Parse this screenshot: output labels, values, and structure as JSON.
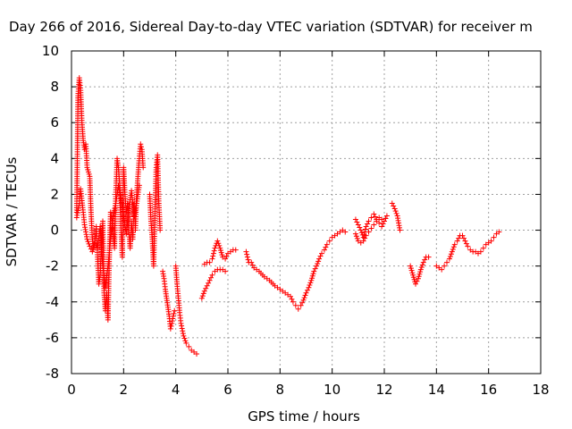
{
  "chart_data": {
    "type": "scatter",
    "title": "Day 266 of 2016, Sidereal Day-to-day VTEC variation (SDTVAR) for receiver m",
    "xlabel": "GPS time / hours",
    "ylabel": "SDTVAR / TECUs",
    "xlim": [
      0,
      18
    ],
    "ylim": [
      -8,
      10
    ],
    "xticks": [
      "0",
      "2",
      "4",
      "6",
      "8",
      "10",
      "12",
      "14",
      "16",
      "18"
    ],
    "yticks": [
      "-8",
      "-6",
      "-4",
      "-2",
      "0",
      "2",
      "4",
      "6",
      "8",
      "10"
    ],
    "grid": true,
    "marker": "+",
    "color": "#ff0000",
    "series": [
      {
        "name": "SDTVAR",
        "segments": [
          [
            [
              0.2,
              1.0
            ],
            [
              0.25,
              7.5
            ],
            [
              0.3,
              8.5
            ],
            [
              0.35,
              7.8
            ],
            [
              0.4,
              6.0
            ],
            [
              0.45,
              5.0
            ],
            [
              0.5,
              4.5
            ],
            [
              0.55,
              4.8
            ],
            [
              0.6,
              3.5
            ],
            [
              0.7,
              3.0
            ],
            [
              0.75,
              1.0
            ],
            [
              0.8,
              -0.5
            ],
            [
              0.85,
              -1.0
            ],
            [
              0.9,
              -0.6
            ],
            [
              0.95,
              0.2
            ],
            [
              1.0,
              -1.5
            ],
            [
              1.05,
              -3.0
            ],
            [
              1.1,
              -2.5
            ],
            [
              1.15,
              -0.8
            ],
            [
              1.2,
              0.5
            ],
            [
              1.25,
              -3.5
            ],
            [
              1.3,
              -4.5
            ],
            [
              1.35,
              -3.5
            ],
            [
              1.4,
              -5.0
            ],
            [
              1.45,
              -1.5
            ],
            [
              1.5,
              1.0
            ],
            [
              1.55,
              0.5
            ],
            [
              1.6,
              -0.2
            ],
            [
              1.65,
              -1.0
            ],
            [
              1.7,
              2.0
            ],
            [
              1.75,
              4.0
            ],
            [
              1.8,
              3.5
            ],
            [
              1.85,
              2.5
            ],
            [
              1.9,
              0.0
            ],
            [
              1.95,
              -1.5
            ],
            [
              2.0,
              3.5
            ],
            [
              2.05,
              2.0
            ],
            [
              2.1,
              1.0
            ],
            [
              2.15,
              1.5
            ],
            [
              2.2,
              0.0
            ],
            [
              2.25,
              -1.0
            ],
            [
              2.3,
              0.5
            ],
            [
              2.35,
              -0.5
            ],
            [
              2.4,
              1.5
            ],
            [
              2.45,
              0.0
            ],
            [
              2.5,
              2.0
            ],
            [
              2.55,
              3.0
            ],
            [
              2.6,
              4.0
            ],
            [
              2.65,
              4.8
            ],
            [
              2.7,
              4.5
            ],
            [
              2.75,
              3.5
            ]
          ],
          [
            [
              0.2,
              0.7
            ],
            [
              0.3,
              1.5
            ],
            [
              0.35,
              2.3
            ],
            [
              0.45,
              1.0
            ],
            [
              0.5,
              0.3
            ],
            [
              0.6,
              -0.5
            ],
            [
              0.7,
              -0.9
            ],
            [
              0.8,
              -1.2
            ],
            [
              0.9,
              -0.7
            ],
            [
              1.0,
              -1.0
            ],
            [
              1.1,
              0.2
            ],
            [
              1.2,
              -2.0
            ],
            [
              1.3,
              -3.2
            ],
            [
              1.4,
              -2.0
            ],
            [
              1.5,
              -0.5
            ],
            [
              1.6,
              0.8
            ],
            [
              1.7,
              1.5
            ],
            [
              1.8,
              2.5
            ],
            [
              1.9,
              1.8
            ],
            [
              2.0,
              0.8
            ],
            [
              2.1,
              -0.2
            ],
            [
              2.2,
              1.2
            ],
            [
              2.3,
              2.2
            ],
            [
              2.4,
              0.8
            ],
            [
              2.5,
              1.5
            ],
            [
              2.6,
              2.5
            ]
          ],
          [
            [
              3.0,
              2.0
            ],
            [
              3.05,
              0.5
            ],
            [
              3.1,
              -0.5
            ],
            [
              3.15,
              -2.0
            ],
            [
              3.2,
              0.8
            ],
            [
              3.25,
              3.5
            ],
            [
              3.3,
              4.2
            ],
            [
              3.35,
              1.5
            ],
            [
              3.4,
              0.0
            ]
          ],
          [
            [
              3.5,
              -2.3
            ],
            [
              3.55,
              -2.7
            ],
            [
              3.6,
              -3.3
            ],
            [
              3.65,
              -3.8
            ],
            [
              3.7,
              -4.3
            ],
            [
              3.75,
              -4.8
            ],
            [
              3.8,
              -5.5
            ],
            [
              3.85,
              -5.2
            ],
            [
              3.9,
              -4.8
            ],
            [
              3.95,
              -4.5
            ]
          ],
          [
            [
              4.0,
              -2.0
            ],
            [
              4.05,
              -3.0
            ],
            [
              4.1,
              -3.8
            ],
            [
              4.15,
              -4.6
            ],
            [
              4.2,
              -5.2
            ],
            [
              4.3,
              -5.9
            ],
            [
              4.4,
              -6.3
            ],
            [
              4.5,
              -6.5
            ],
            [
              4.6,
              -6.7
            ],
            [
              4.7,
              -6.8
            ],
            [
              4.8,
              -6.9
            ]
          ],
          [
            [
              5.0,
              -3.8
            ],
            [
              5.1,
              -3.4
            ],
            [
              5.2,
              -3.1
            ],
            [
              5.3,
              -2.8
            ],
            [
              5.4,
              -2.5
            ],
            [
              5.5,
              -2.3
            ],
            [
              5.6,
              -2.2
            ],
            [
              5.7,
              -2.2
            ],
            [
              5.8,
              -2.2
            ],
            [
              5.9,
              -2.3
            ]
          ],
          [
            [
              5.1,
              -1.9
            ],
            [
              5.2,
              -1.8
            ],
            [
              5.3,
              -1.8
            ],
            [
              5.4,
              -1.6
            ],
            [
              5.5,
              -1.0
            ],
            [
              5.6,
              -0.6
            ],
            [
              5.7,
              -1.0
            ],
            [
              5.8,
              -1.5
            ],
            [
              5.9,
              -1.6
            ],
            [
              6.0,
              -1.3
            ],
            [
              6.1,
              -1.2
            ],
            [
              6.2,
              -1.1
            ],
            [
              6.3,
              -1.1
            ]
          ],
          [
            [
              6.7,
              -1.2
            ],
            [
              6.8,
              -1.8
            ],
            [
              6.9,
              -1.8
            ],
            [
              7.0,
              -2.1
            ],
            [
              7.2,
              -2.3
            ],
            [
              7.4,
              -2.6
            ],
            [
              7.6,
              -2.8
            ],
            [
              7.8,
              -3.1
            ],
            [
              8.0,
              -3.3
            ],
            [
              8.2,
              -3.5
            ],
            [
              8.4,
              -3.7
            ],
            [
              8.5,
              -4.0
            ],
            [
              8.6,
              -4.2
            ],
            [
              8.7,
              -4.4
            ],
            [
              8.8,
              -4.2
            ],
            [
              8.9,
              -3.9
            ],
            [
              9.0,
              -3.5
            ],
            [
              9.1,
              -3.2
            ],
            [
              9.2,
              -2.8
            ],
            [
              9.3,
              -2.3
            ],
            [
              9.4,
              -2.0
            ],
            [
              9.5,
              -1.6
            ],
            [
              9.6,
              -1.3
            ],
            [
              9.7,
              -1.1
            ],
            [
              9.8,
              -0.8
            ],
            [
              9.9,
              -0.6
            ],
            [
              10.0,
              -0.4
            ],
            [
              10.1,
              -0.3
            ],
            [
              10.2,
              -0.2
            ],
            [
              10.3,
              -0.1
            ],
            [
              10.4,
              0.0
            ],
            [
              10.5,
              -0.1
            ]
          ],
          [
            [
              10.9,
              0.6
            ],
            [
              11.0,
              0.3
            ],
            [
              11.1,
              0.0
            ],
            [
              11.2,
              -0.4
            ],
            [
              11.3,
              0.2
            ],
            [
              11.4,
              0.5
            ],
            [
              11.5,
              0.7
            ],
            [
              11.6,
              0.9
            ],
            [
              11.7,
              0.6
            ],
            [
              11.8,
              0.4
            ],
            [
              11.9,
              0.2
            ],
            [
              12.0,
              0.5
            ],
            [
              12.1,
              0.8
            ]
          ],
          [
            [
              10.9,
              -0.2
            ],
            [
              11.0,
              -0.6
            ],
            [
              11.1,
              -0.7
            ],
            [
              11.2,
              -0.6
            ],
            [
              11.3,
              -0.3
            ],
            [
              11.4,
              -0.1
            ],
            [
              11.5,
              0.1
            ],
            [
              11.6,
              0.3
            ],
            [
              11.7,
              0.5
            ],
            [
              11.8,
              0.7
            ],
            [
              11.9,
              0.6
            ]
          ],
          [
            [
              12.3,
              1.5
            ],
            [
              12.4,
              1.2
            ],
            [
              12.5,
              0.8
            ],
            [
              12.6,
              0.0
            ]
          ],
          [
            [
              13.0,
              -2.0
            ],
            [
              13.1,
              -2.5
            ],
            [
              13.2,
              -3.0
            ],
            [
              13.3,
              -2.7
            ],
            [
              13.4,
              -2.2
            ],
            [
              13.5,
              -1.8
            ],
            [
              13.6,
              -1.5
            ],
            [
              13.7,
              -1.5
            ]
          ],
          [
            [
              14.0,
              -2.0
            ],
            [
              14.1,
              -2.1
            ],
            [
              14.2,
              -2.2
            ],
            [
              14.3,
              -2.0
            ],
            [
              14.4,
              -1.8
            ],
            [
              14.5,
              -1.6
            ],
            [
              14.6,
              -1.2
            ],
            [
              14.7,
              -0.8
            ],
            [
              14.8,
              -0.6
            ],
            [
              14.9,
              -0.3
            ],
            [
              15.0,
              -0.3
            ],
            [
              15.1,
              -0.6
            ],
            [
              15.2,
              -0.9
            ],
            [
              15.3,
              -1.1
            ],
            [
              15.4,
              -1.2
            ],
            [
              15.5,
              -1.2
            ],
            [
              15.6,
              -1.3
            ],
            [
              15.7,
              -1.2
            ],
            [
              15.8,
              -1.0
            ],
            [
              15.9,
              -0.8
            ],
            [
              16.0,
              -0.7
            ],
            [
              16.1,
              -0.6
            ],
            [
              16.2,
              -0.4
            ],
            [
              16.3,
              -0.2
            ],
            [
              16.4,
              -0.1
            ]
          ]
        ]
      }
    ]
  }
}
